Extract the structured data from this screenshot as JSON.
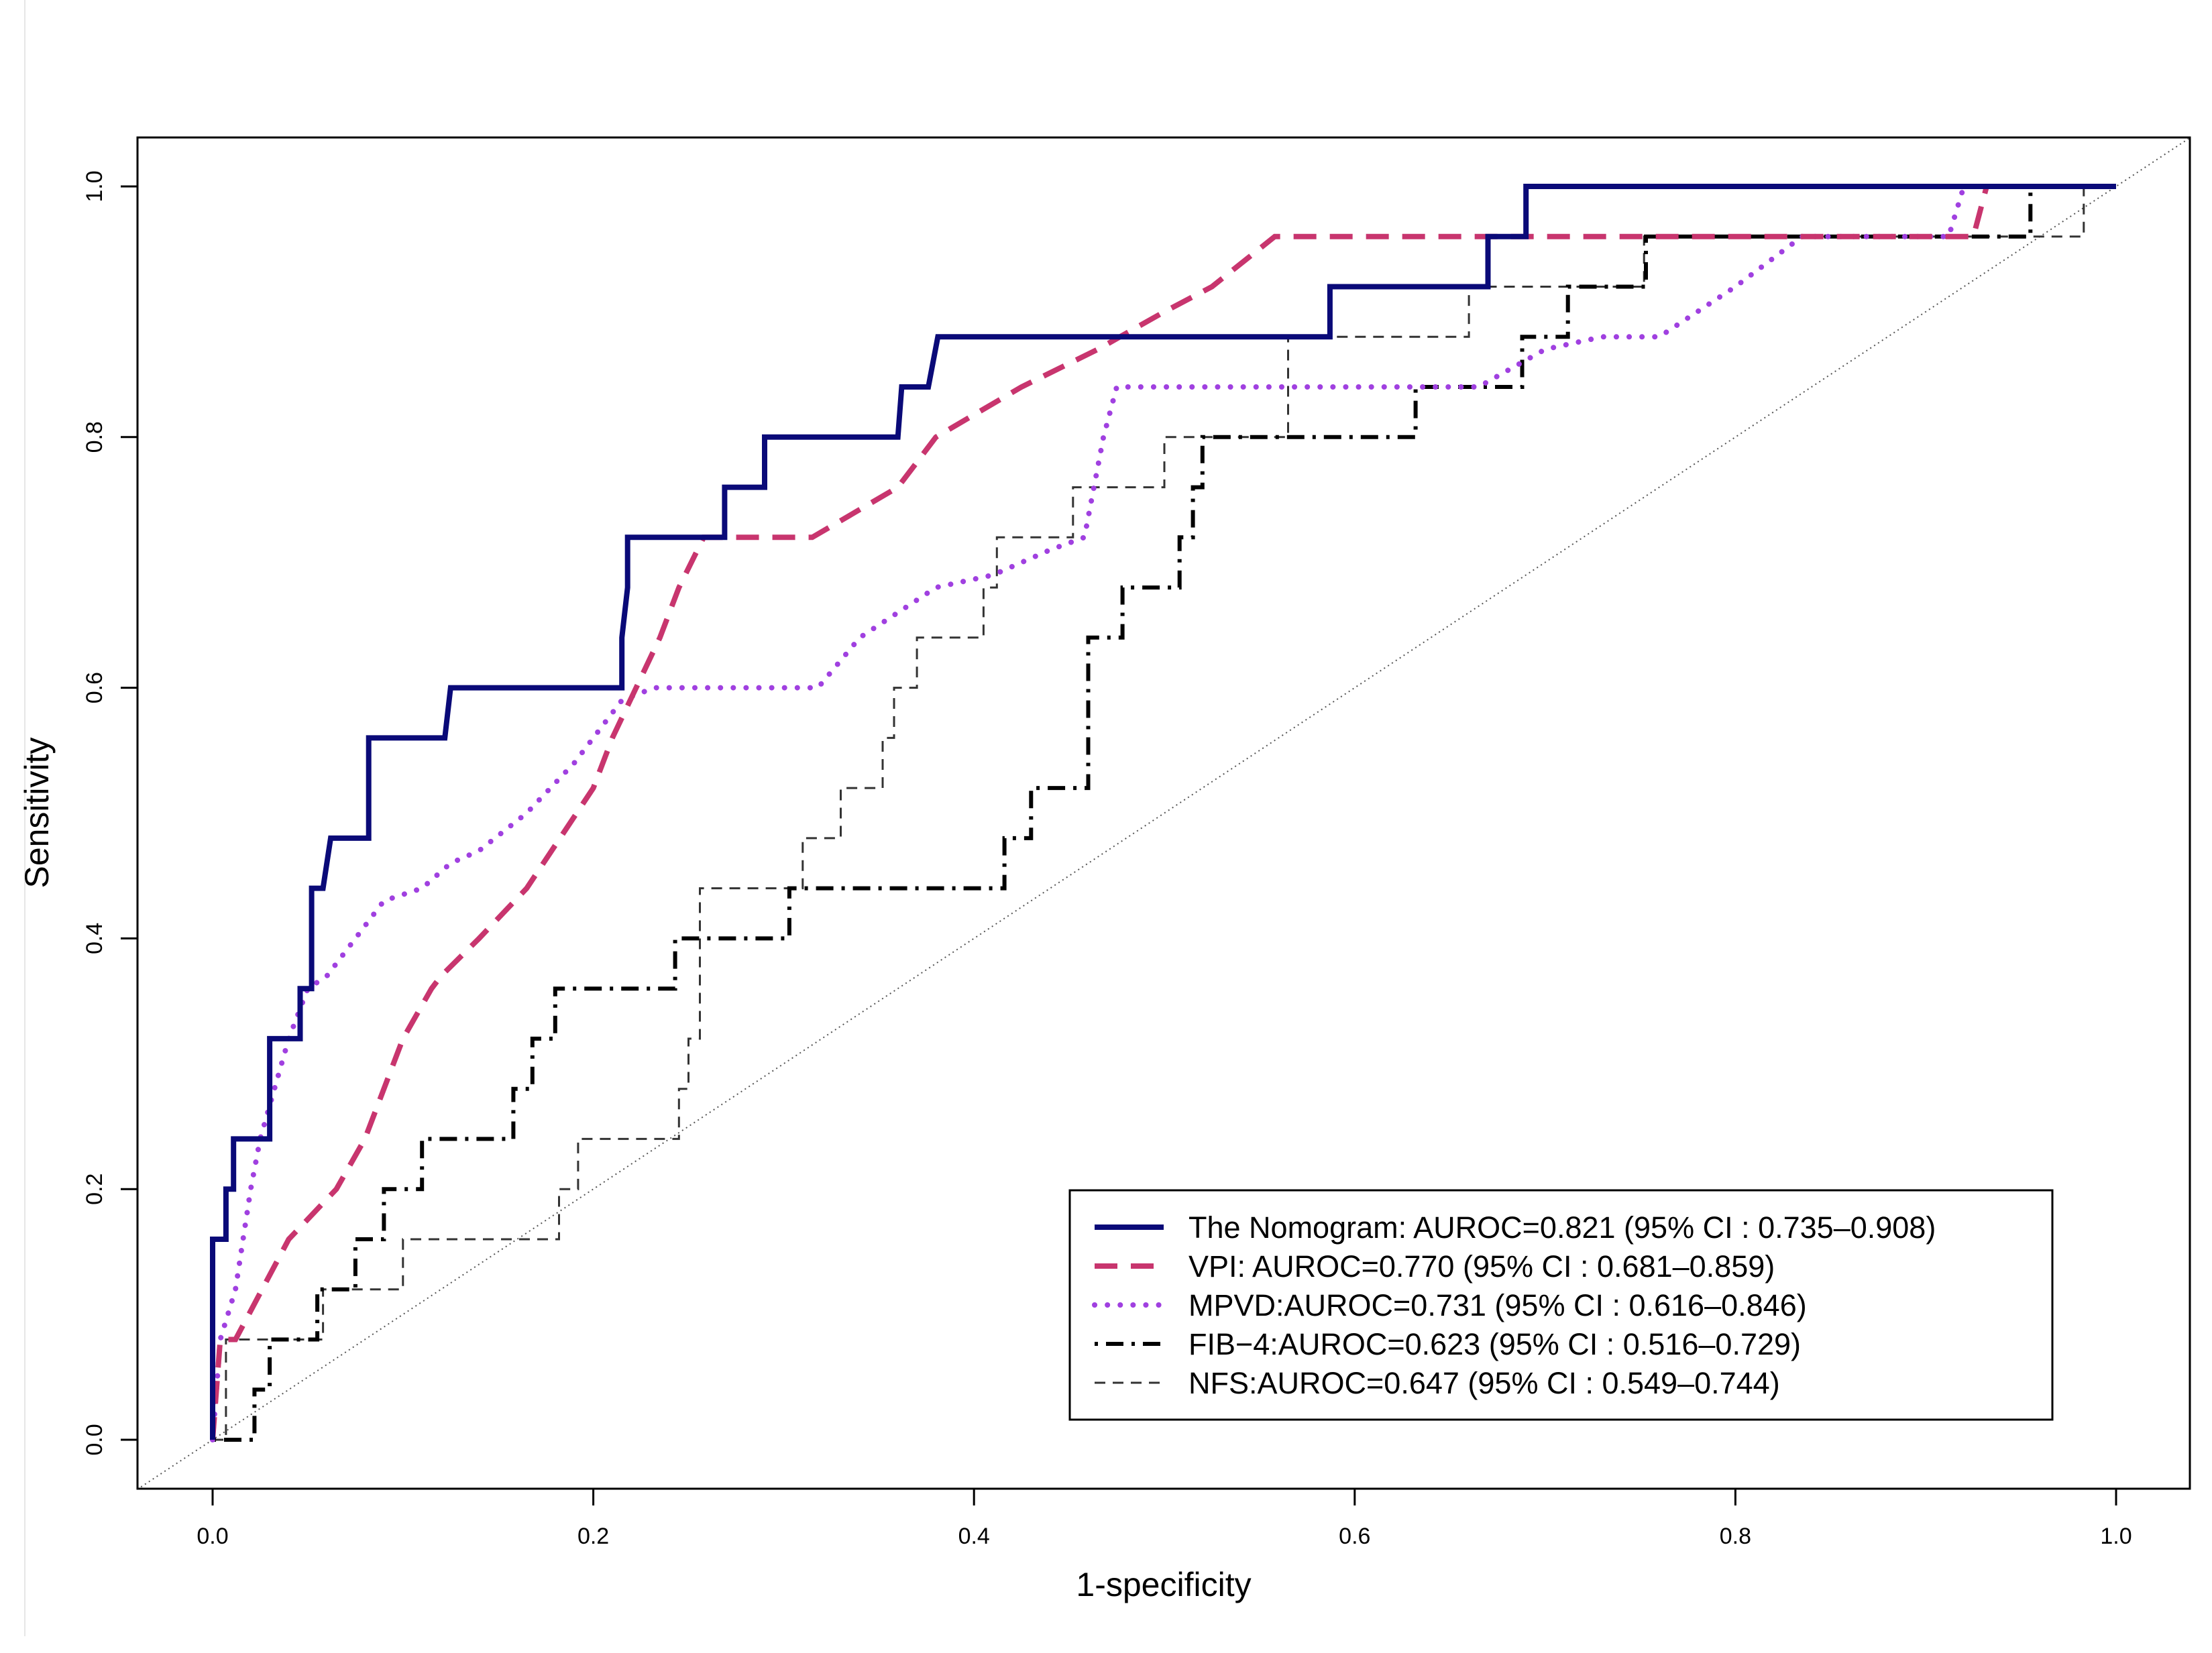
{
  "chart_data": {
    "type": "line",
    "title": "",
    "xlabel": "1-specificity",
    "ylabel": "Sensitivity",
    "xlim": [
      0,
      1
    ],
    "ylim": [
      0,
      1
    ],
    "x_ticks": [
      "0.0",
      "0.2",
      "0.4",
      "0.6",
      "0.8",
      "1.0"
    ],
    "y_ticks": [
      "0.0",
      "0.2",
      "0.4",
      "0.6",
      "0.8",
      "1.0"
    ],
    "legend_position": "bottom-right",
    "reference_line": {
      "name": "chance diagonal",
      "points": [
        [
          0,
          0
        ],
        [
          1,
          1
        ]
      ],
      "color": "#555555"
    },
    "series": [
      {
        "name": "The Nomogram",
        "label": "The Nomogram: AUROC=0.821 (95% CI : 0.735–0.908)",
        "color": "#0a0a78",
        "style": "solid",
        "points": [
          [
            0,
            0
          ],
          [
            0,
            0.16
          ],
          [
            0.007,
            0.16
          ],
          [
            0.007,
            0.2
          ],
          [
            0.011,
            0.2
          ],
          [
            0.011,
            0.24
          ],
          [
            0.03,
            0.24
          ],
          [
            0.03,
            0.32
          ],
          [
            0.046,
            0.32
          ],
          [
            0.046,
            0.36
          ],
          [
            0.052,
            0.36
          ],
          [
            0.052,
            0.44
          ],
          [
            0.058,
            0.44
          ],
          [
            0.062,
            0.48
          ],
          [
            0.082,
            0.48
          ],
          [
            0.082,
            0.56
          ],
          [
            0.122,
            0.56
          ],
          [
            0.125,
            0.6
          ],
          [
            0.215,
            0.6
          ],
          [
            0.215,
            0.64
          ],
          [
            0.218,
            0.68
          ],
          [
            0.218,
            0.72
          ],
          [
            0.269,
            0.72
          ],
          [
            0.269,
            0.76
          ],
          [
            0.29,
            0.76
          ],
          [
            0.29,
            0.8
          ],
          [
            0.36,
            0.8
          ],
          [
            0.362,
            0.84
          ],
          [
            0.376,
            0.84
          ],
          [
            0.381,
            0.88
          ],
          [
            0.587,
            0.88
          ],
          [
            0.587,
            0.92
          ],
          [
            0.67,
            0.92
          ],
          [
            0.67,
            0.96
          ],
          [
            0.69,
            0.96
          ],
          [
            0.69,
            1
          ],
          [
            1,
            1
          ]
        ]
      },
      {
        "name": "VPI",
        "label": "VPI: AUROC=0.770 (95% CI : 0.681–0.859)",
        "color": "#c8356e",
        "style": "dashed",
        "points": [
          [
            0,
            0
          ],
          [
            0.004,
            0.08
          ],
          [
            0.012,
            0.08
          ],
          [
            0.04,
            0.16
          ],
          [
            0.065,
            0.2
          ],
          [
            0.08,
            0.24
          ],
          [
            0.1,
            0.32
          ],
          [
            0.115,
            0.36
          ],
          [
            0.12,
            0.37
          ],
          [
            0.14,
            0.4
          ],
          [
            0.165,
            0.44
          ],
          [
            0.2,
            0.52
          ],
          [
            0.21,
            0.56
          ],
          [
            0.235,
            0.64
          ],
          [
            0.245,
            0.68
          ],
          [
            0.258,
            0.72
          ],
          [
            0.315,
            0.72
          ],
          [
            0.36,
            0.76
          ],
          [
            0.37,
            0.78
          ],
          [
            0.38,
            0.8
          ],
          [
            0.425,
            0.84
          ],
          [
            0.465,
            0.87
          ],
          [
            0.5,
            0.9
          ],
          [
            0.525,
            0.92
          ],
          [
            0.558,
            0.96
          ],
          [
            0.925,
            0.96
          ],
          [
            0.932,
            1
          ],
          [
            1,
            1
          ]
        ]
      },
      {
        "name": "MPVD",
        "label": "MPVD:AUROC=0.731 (95% CI : 0.616–0.846)",
        "color": "#a040e0",
        "style": "dotted",
        "points": [
          [
            0,
            0
          ],
          [
            0.004,
            0.08
          ],
          [
            0.012,
            0.12
          ],
          [
            0.02,
            0.2
          ],
          [
            0.025,
            0.24
          ],
          [
            0.04,
            0.32
          ],
          [
            0.05,
            0.36
          ],
          [
            0.06,
            0.37
          ],
          [
            0.075,
            0.4
          ],
          [
            0.09,
            0.43
          ],
          [
            0.11,
            0.44
          ],
          [
            0.125,
            0.46
          ],
          [
            0.14,
            0.47
          ],
          [
            0.165,
            0.5
          ],
          [
            0.19,
            0.54
          ],
          [
            0.215,
            0.59
          ],
          [
            0.232,
            0.6
          ],
          [
            0.318,
            0.6
          ],
          [
            0.34,
            0.64
          ],
          [
            0.37,
            0.67
          ],
          [
            0.38,
            0.68
          ],
          [
            0.41,
            0.69
          ],
          [
            0.44,
            0.71
          ],
          [
            0.458,
            0.72
          ],
          [
            0.468,
            0.8
          ],
          [
            0.475,
            0.84
          ],
          [
            0.665,
            0.84
          ],
          [
            0.7,
            0.87
          ],
          [
            0.73,
            0.88
          ],
          [
            0.76,
            0.88
          ],
          [
            0.8,
            0.92
          ],
          [
            0.835,
            0.96
          ],
          [
            0.912,
            0.96
          ],
          [
            0.92,
            1
          ],
          [
            1,
            1
          ]
        ]
      },
      {
        "name": "FIB-4",
        "label": "FIB−4:AUROC=0.623 (95% CI : 0.516–0.729)",
        "color": "#000000",
        "style": "dotdash",
        "points": [
          [
            0,
            0
          ],
          [
            0.022,
            0
          ],
          [
            0.022,
            0.04
          ],
          [
            0.03,
            0.04
          ],
          [
            0.03,
            0.08
          ],
          [
            0.055,
            0.08
          ],
          [
            0.055,
            0.12
          ],
          [
            0.075,
            0.12
          ],
          [
            0.075,
            0.16
          ],
          [
            0.09,
            0.16
          ],
          [
            0.09,
            0.2
          ],
          [
            0.11,
            0.2
          ],
          [
            0.11,
            0.24
          ],
          [
            0.158,
            0.24
          ],
          [
            0.158,
            0.28
          ],
          [
            0.168,
            0.28
          ],
          [
            0.168,
            0.32
          ],
          [
            0.18,
            0.32
          ],
          [
            0.18,
            0.36
          ],
          [
            0.243,
            0.36
          ],
          [
            0.243,
            0.4
          ],
          [
            0.303,
            0.4
          ],
          [
            0.303,
            0.44
          ],
          [
            0.416,
            0.44
          ],
          [
            0.416,
            0.48
          ],
          [
            0.43,
            0.48
          ],
          [
            0.43,
            0.52
          ],
          [
            0.46,
            0.52
          ],
          [
            0.46,
            0.64
          ],
          [
            0.478,
            0.64
          ],
          [
            0.478,
            0.68
          ],
          [
            0.508,
            0.68
          ],
          [
            0.508,
            0.72
          ],
          [
            0.515,
            0.72
          ],
          [
            0.515,
            0.76
          ],
          [
            0.52,
            0.76
          ],
          [
            0.52,
            0.8
          ],
          [
            0.632,
            0.8
          ],
          [
            0.632,
            0.84
          ],
          [
            0.688,
            0.84
          ],
          [
            0.688,
            0.88
          ],
          [
            0.712,
            0.88
          ],
          [
            0.712,
            0.92
          ],
          [
            0.753,
            0.92
          ],
          [
            0.753,
            0.96
          ],
          [
            0.955,
            0.96
          ],
          [
            0.955,
            1
          ],
          [
            1,
            1
          ]
        ]
      },
      {
        "name": "NFS",
        "label": "NFS:AUROC=0.647 (95% CI : 0.549–0.744)",
        "color": "#333333",
        "style": "dashed-thin",
        "points": [
          [
            0,
            0
          ],
          [
            0.007,
            0
          ],
          [
            0.007,
            0.08
          ],
          [
            0.058,
            0.08
          ],
          [
            0.058,
            0.12
          ],
          [
            0.1,
            0.12
          ],
          [
            0.1,
            0.16
          ],
          [
            0.182,
            0.16
          ],
          [
            0.182,
            0.2
          ],
          [
            0.192,
            0.2
          ],
          [
            0.192,
            0.24
          ],
          [
            0.245,
            0.24
          ],
          [
            0.245,
            0.28
          ],
          [
            0.25,
            0.28
          ],
          [
            0.25,
            0.32
          ],
          [
            0.256,
            0.32
          ],
          [
            0.256,
            0.44
          ],
          [
            0.31,
            0.44
          ],
          [
            0.31,
            0.48
          ],
          [
            0.33,
            0.48
          ],
          [
            0.33,
            0.52
          ],
          [
            0.352,
            0.52
          ],
          [
            0.352,
            0.56
          ],
          [
            0.358,
            0.56
          ],
          [
            0.358,
            0.6
          ],
          [
            0.37,
            0.6
          ],
          [
            0.37,
            0.64
          ],
          [
            0.405,
            0.64
          ],
          [
            0.405,
            0.68
          ],
          [
            0.412,
            0.68
          ],
          [
            0.412,
            0.72
          ],
          [
            0.452,
            0.72
          ],
          [
            0.452,
            0.76
          ],
          [
            0.5,
            0.76
          ],
          [
            0.5,
            0.8
          ],
          [
            0.565,
            0.8
          ],
          [
            0.565,
            0.88
          ],
          [
            0.66,
            0.88
          ],
          [
            0.66,
            0.92
          ],
          [
            0.752,
            0.92
          ],
          [
            0.752,
            0.96
          ],
          [
            0.983,
            0.96
          ],
          [
            0.983,
            1
          ],
          [
            1,
            1
          ]
        ]
      }
    ]
  }
}
